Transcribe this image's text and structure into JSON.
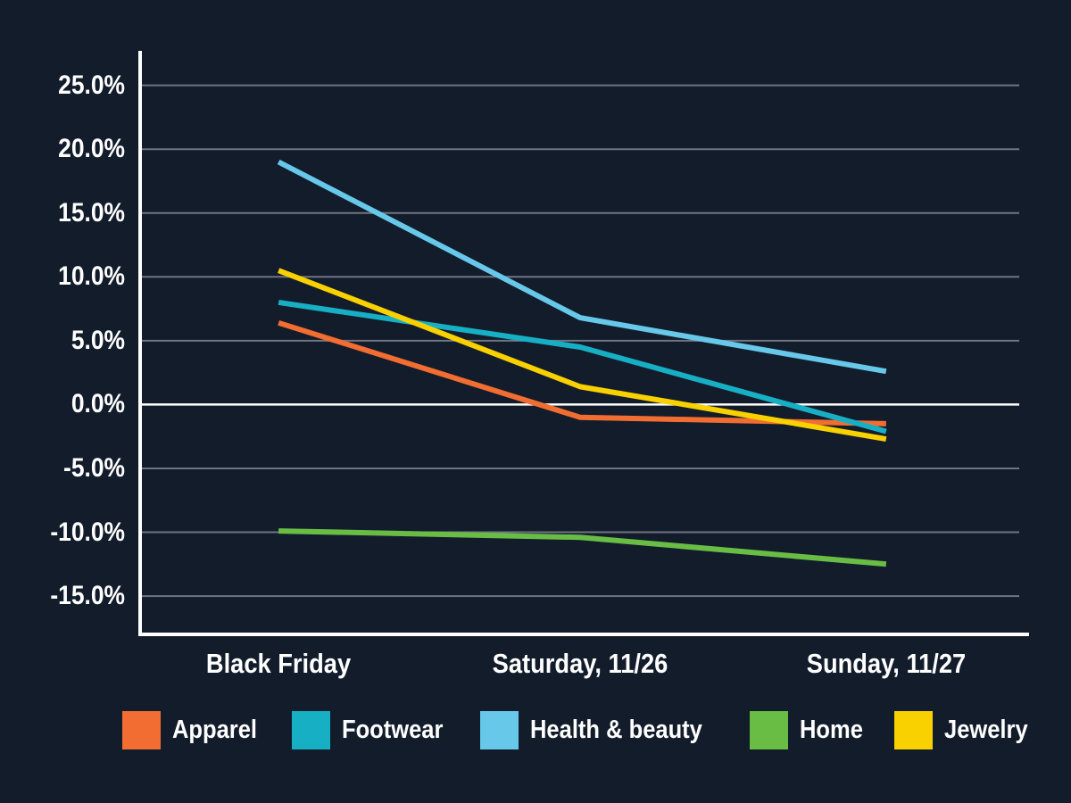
{
  "app": {
    "background_color": "#121C2B",
    "text_color": "#FFFFFF"
  },
  "chart_data": {
    "type": "line",
    "title": "",
    "xlabel": "",
    "ylabel": "",
    "categories": [
      "Black Friday",
      "Saturday, 11/26",
      "Sunday, 11/27"
    ],
    "series": [
      {
        "name": "Apparel",
        "color": "#F26D31",
        "values": [
          6.4,
          -1.0,
          -1.5
        ]
      },
      {
        "name": "Footwear",
        "color": "#17AFC4",
        "values": [
          8.0,
          4.5,
          -2.1
        ]
      },
      {
        "name": "Health & beauty",
        "color": "#67C8E9",
        "values": [
          19.0,
          6.8,
          2.6
        ]
      },
      {
        "name": "Home",
        "color": "#69BD45",
        "values": [
          -9.9,
          -10.4,
          -12.5
        ]
      },
      {
        "name": "Jewelry",
        "color": "#F9D101",
        "values": [
          10.5,
          1.4,
          -2.7
        ]
      }
    ],
    "ylim": [
      -18,
      27.7
    ],
    "yticks": [
      {
        "label": "25.0%",
        "value": 25
      },
      {
        "label": "20.0%",
        "value": 20
      },
      {
        "label": "15.0%",
        "value": 15
      },
      {
        "label": "10.0%",
        "value": 10
      },
      {
        "label": "5.0%",
        "value": 5
      },
      {
        "label": "0.0%",
        "value": 0
      },
      {
        "label": "-5.0%",
        "value": -5
      },
      {
        "label": "-10.0%",
        "value": -10
      },
      {
        "label": "-15.0%",
        "value": -15
      }
    ],
    "grid": true,
    "gridline_color": "#6F7580",
    "zero_line_color": "#FFFFFF",
    "axis_color": "#FFFFFF",
    "legend_position": "bottom"
  }
}
